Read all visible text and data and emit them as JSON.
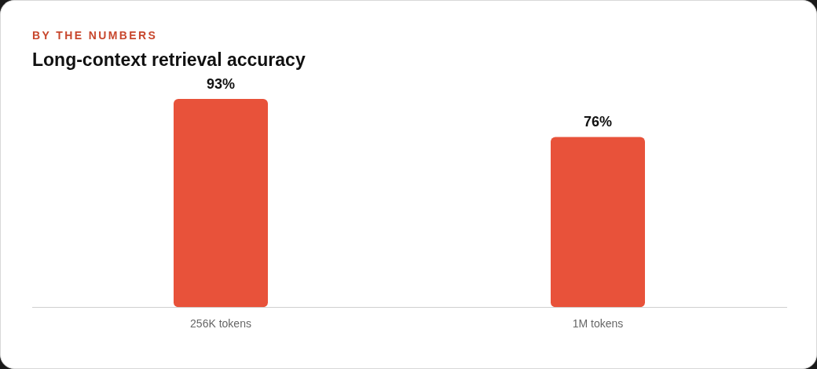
{
  "chart_data": {
    "type": "bar",
    "subtitle": "BY THE NUMBERS",
    "title": "Long-context retrieval accuracy",
    "categories": [
      "256K tokens",
      "1M tokens"
    ],
    "values": [
      93,
      76
    ],
    "value_labels": [
      "93%",
      "76%"
    ],
    "color": "#e8523a",
    "grid": false,
    "legend": false,
    "tick_labels": "x"
  }
}
